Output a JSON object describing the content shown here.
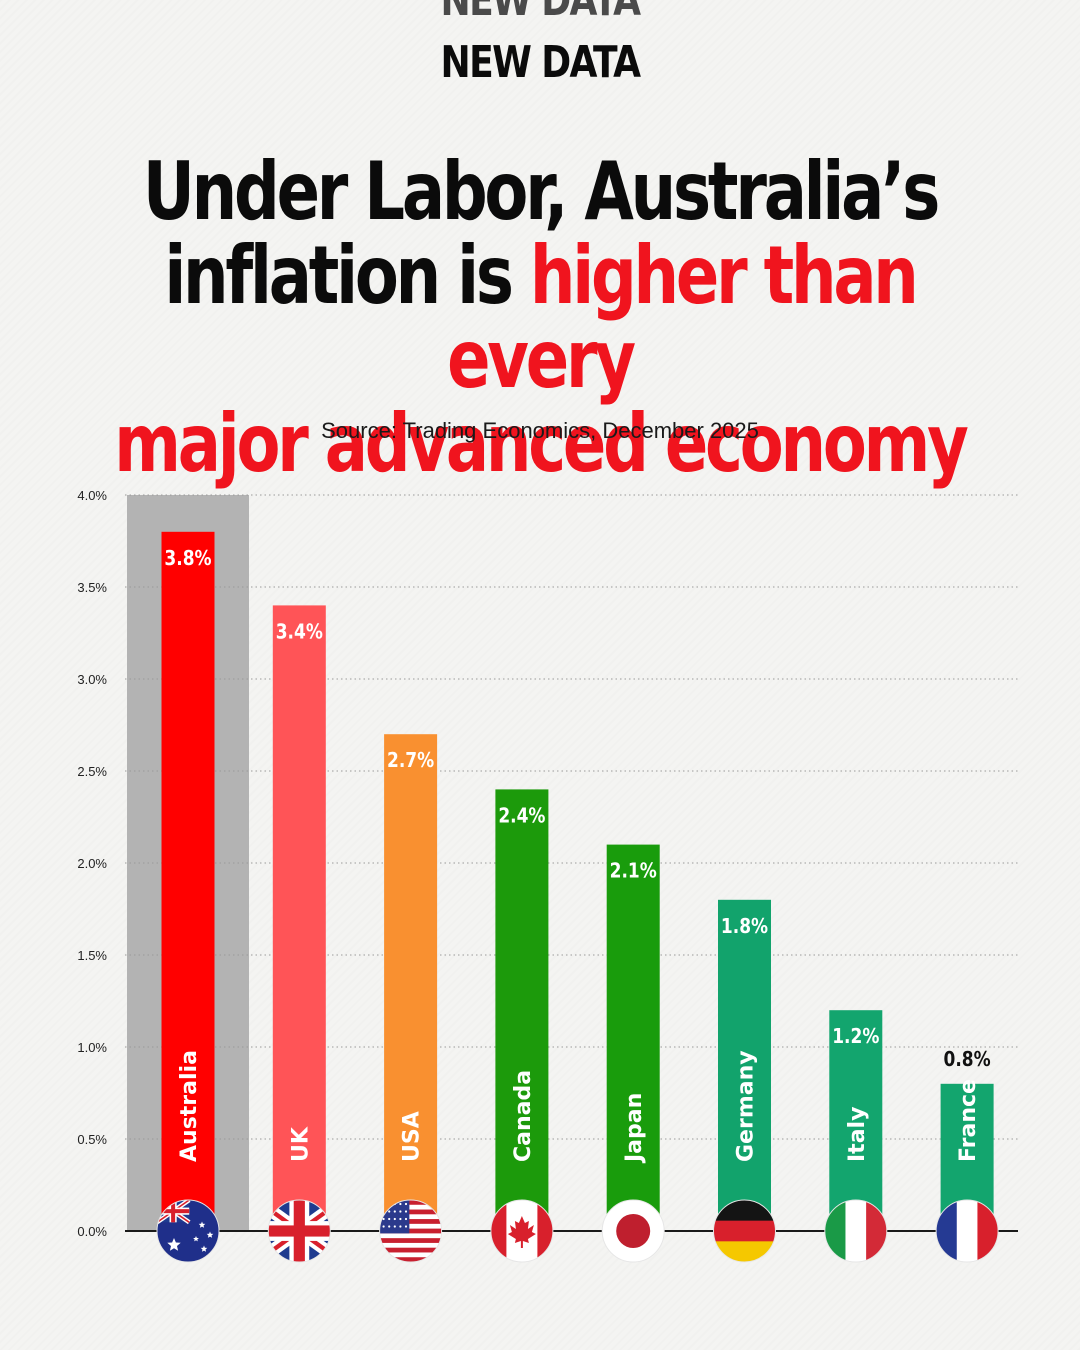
{
  "header": {
    "tagline": "NEW DATA",
    "headline_line1": "Under Labor, Australia’s",
    "headline_line2_black": "inflation is ",
    "headline_line2_red": "higher than every",
    "headline_line3_red": "major advanced economy",
    "source": "Source: Trading Economics, December 2025"
  },
  "colors": {
    "accent_red": "#f0141e",
    "text": "#0b0b0b",
    "highlight_band": "#b3b3b3"
  },
  "chart_data": {
    "type": "bar",
    "categories": [
      "Australia",
      "UK",
      "USA",
      "Canada",
      "Japan",
      "Germany",
      "Italy",
      "France"
    ],
    "values": [
      3.8,
      3.4,
      2.7,
      2.4,
      2.1,
      1.8,
      1.2,
      0.8
    ],
    "value_labels": [
      "3.8%",
      "3.4%",
      "2.7%",
      "2.4%",
      "2.1%",
      "1.8%",
      "1.2%",
      "0.8%"
    ],
    "bar_colors": [
      "#ff0000",
      "#ff5457",
      "#f99030",
      "#1c9a0b",
      "#199c0c",
      "#12a36c",
      "#13a56e",
      "#13a56e"
    ],
    "highlighted_category": "Australia",
    "flags": [
      "australia-flag-icon",
      "uk-flag-icon",
      "usa-flag-icon",
      "canada-flag-icon",
      "japan-flag-icon",
      "germany-flag-icon",
      "italy-flag-icon",
      "france-flag-icon"
    ],
    "ylim": [
      0,
      4.0
    ],
    "yticks": [
      0,
      0.5,
      1.0,
      1.5,
      2.0,
      2.5,
      3.0,
      3.5,
      4.0
    ],
    "ytick_labels": [
      "0.0%",
      "0.5%",
      "1.0%",
      "1.5%",
      "2.0%",
      "2.5%",
      "3.0%",
      "3.5%",
      "4.0%"
    ],
    "grid": true,
    "xlabel": "",
    "ylabel": ""
  }
}
